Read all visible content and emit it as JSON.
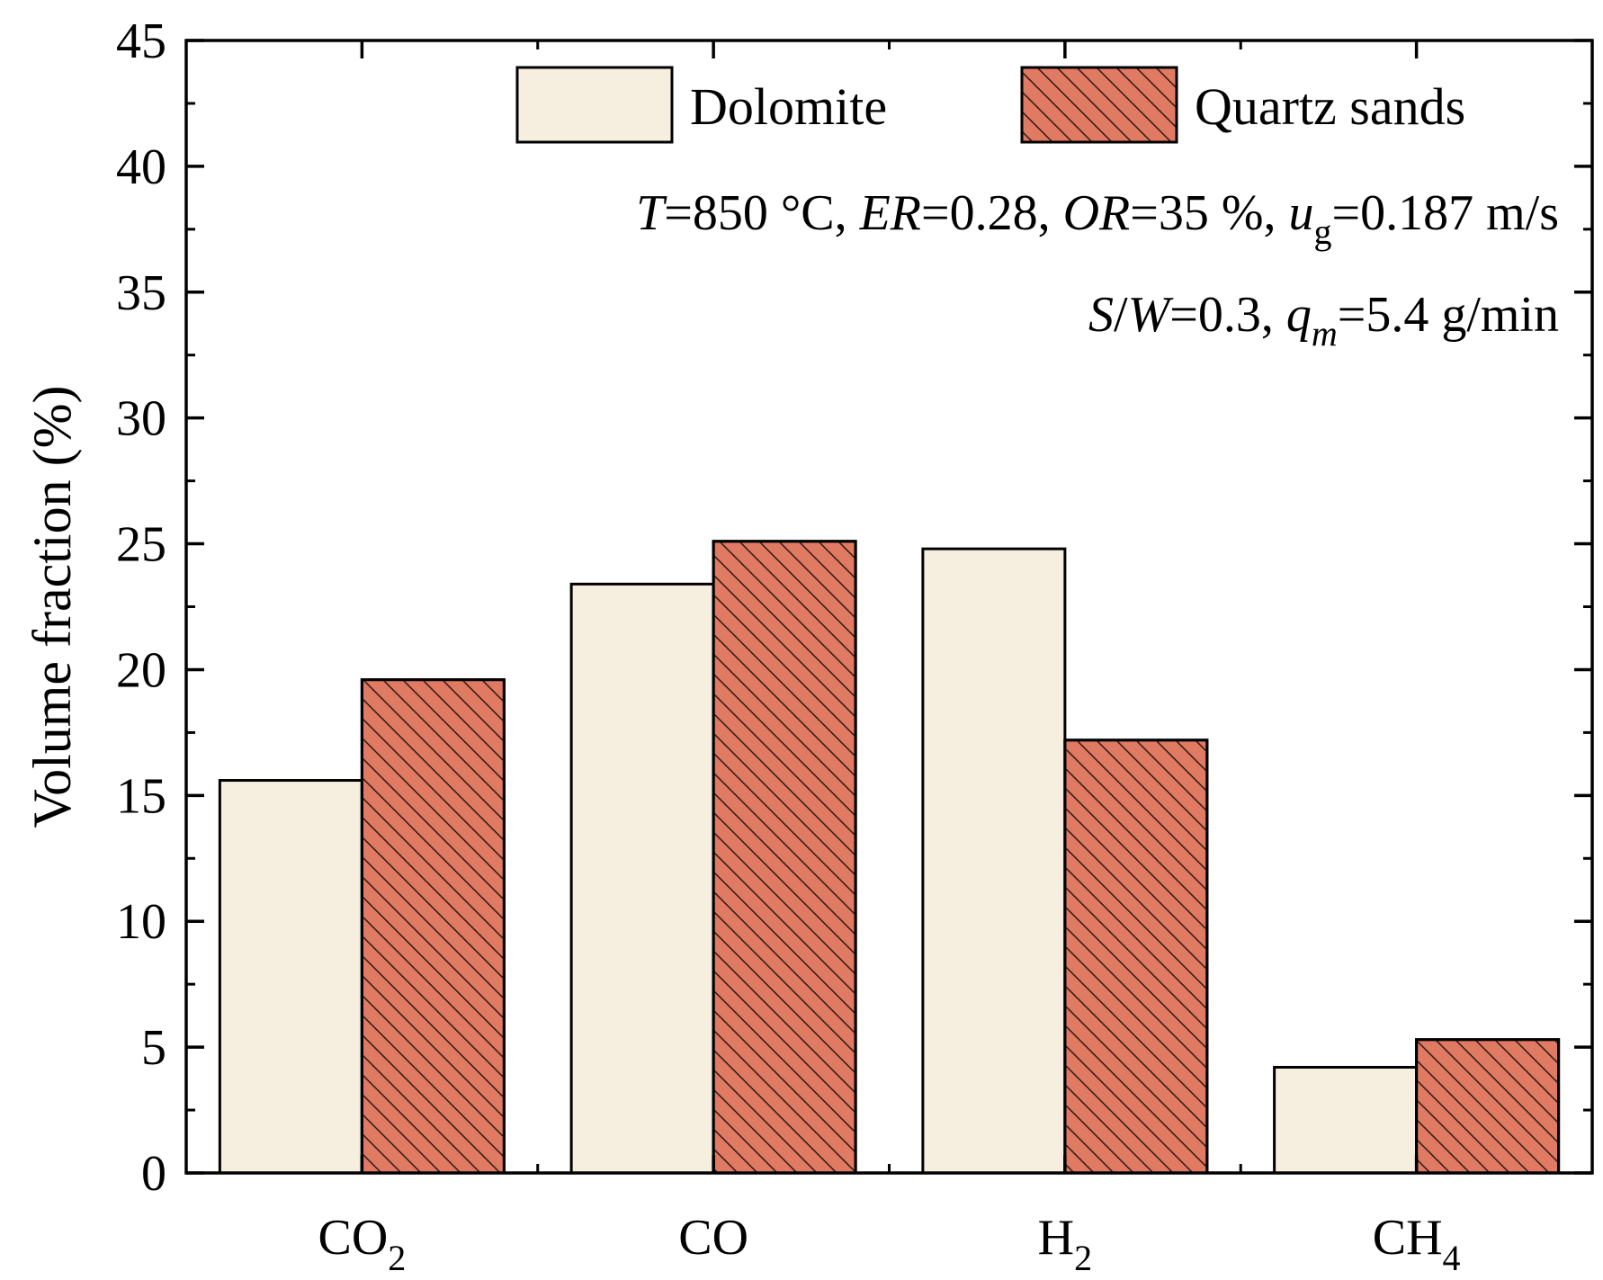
{
  "chart_data": {
    "type": "bar",
    "categories": [
      {
        "main": "CO",
        "sub": "2"
      },
      {
        "main": "CO",
        "sub": ""
      },
      {
        "main": "H",
        "sub": "2"
      },
      {
        "main": "CH",
        "sub": "4"
      }
    ],
    "series": [
      {
        "name": "Dolomite",
        "values": [
          15.6,
          23.4,
          24.8,
          4.2
        ],
        "color": "#f6efe0",
        "pattern": "none"
      },
      {
        "name": "Quartz sands",
        "values": [
          19.6,
          25.1,
          17.2,
          5.3
        ],
        "color": "#e07a62",
        "pattern": "diagonal-hatch"
      }
    ],
    "ylabel": "Volume fraction (%)",
    "xlabel": "",
    "ylim": [
      0,
      45
    ],
    "yticks": [
      0,
      5,
      10,
      15,
      20,
      25,
      30,
      35,
      40,
      45
    ],
    "legend_position": "top-right",
    "grid": false,
    "annotations": {
      "line1": [
        {
          "t": "T",
          "it": true
        },
        {
          "t": "=850 °C, "
        },
        {
          "t": "ER",
          "it": true
        },
        {
          "t": "=0.28, "
        },
        {
          "t": "OR",
          "it": true
        },
        {
          "t": "=35 %, "
        },
        {
          "t": "u",
          "it": true
        },
        {
          "t": "g",
          "sub": true
        },
        {
          "t": "=0.187 m/s"
        }
      ],
      "line2": [
        {
          "t": "S",
          "it": true
        },
        {
          "t": "/"
        },
        {
          "t": "W",
          "it": true
        },
        {
          "t": "=0.3, "
        },
        {
          "t": "q",
          "it": true
        },
        {
          "t": "m",
          "it": true,
          "sub": true
        },
        {
          "t": "=5.4 g/min"
        }
      ]
    }
  }
}
